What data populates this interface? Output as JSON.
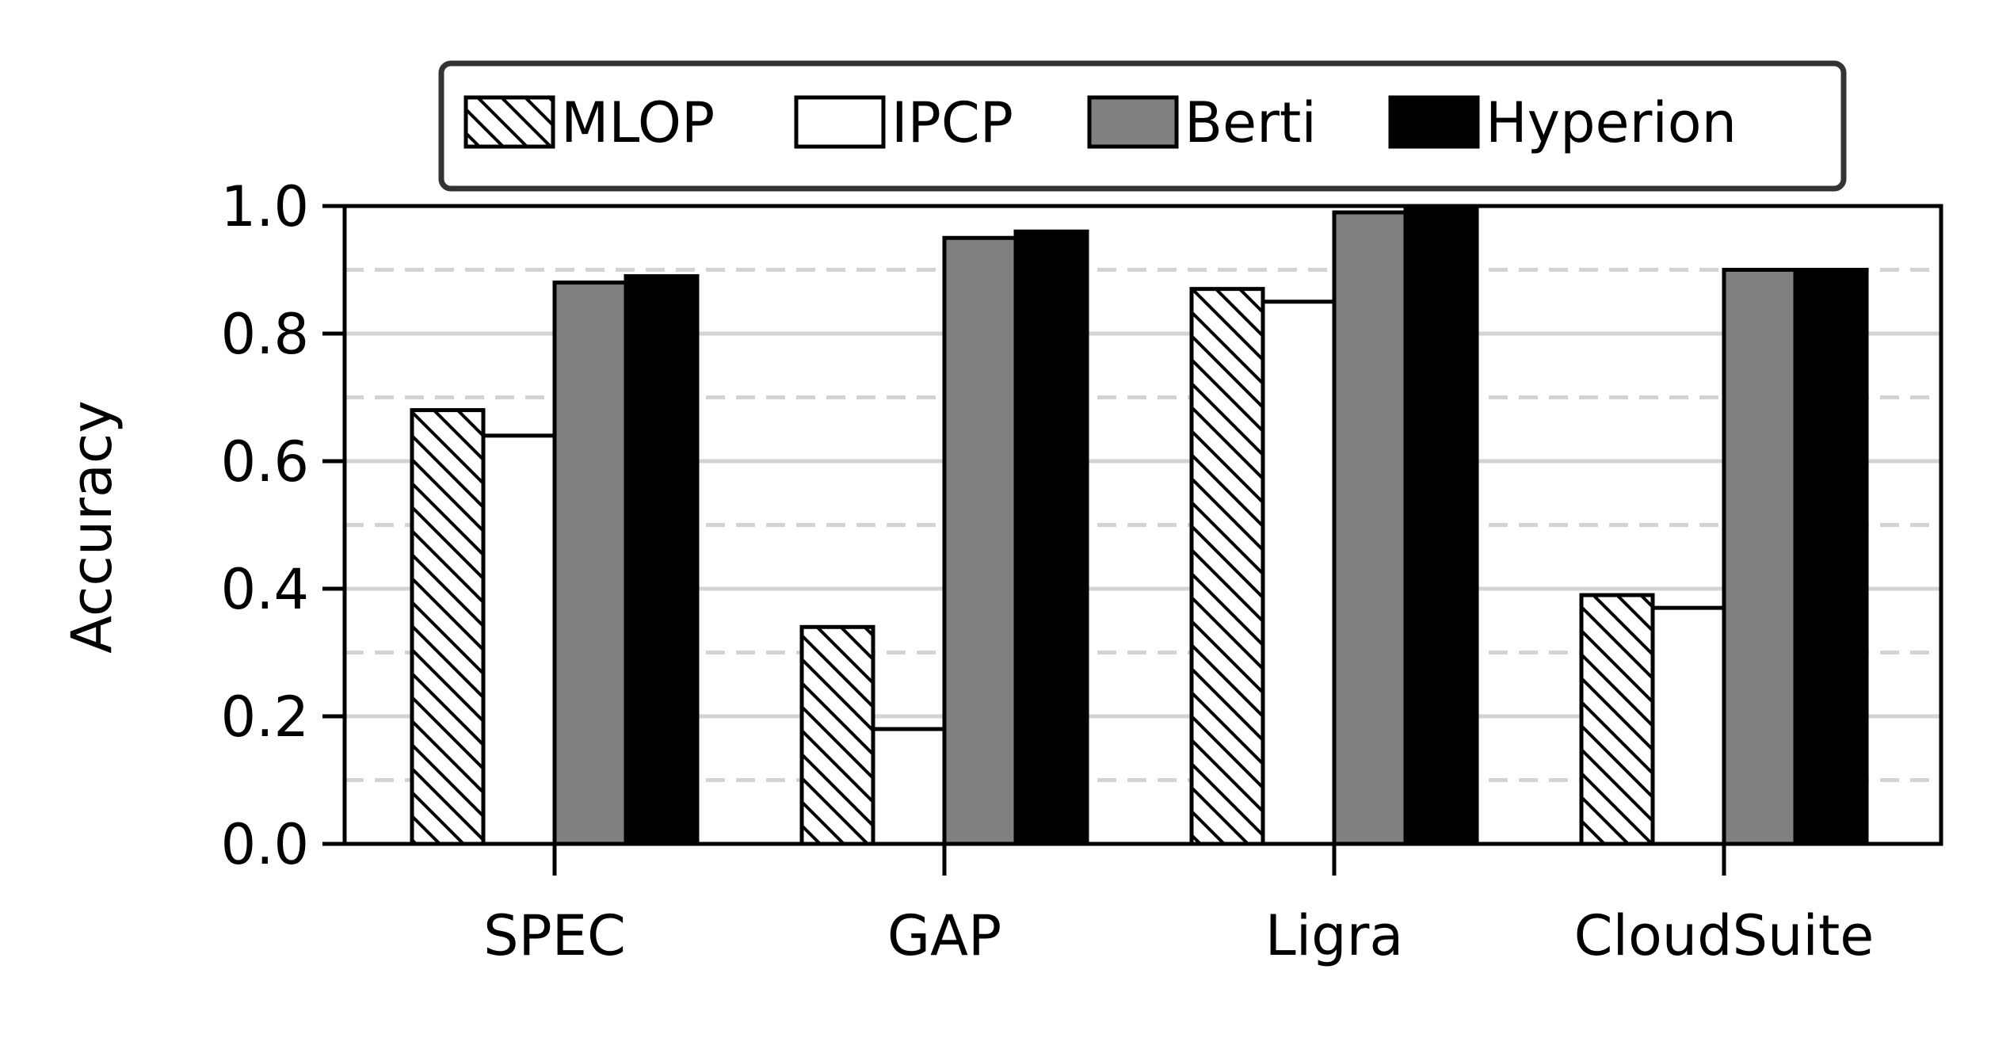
{
  "chart_data": {
    "type": "bar",
    "categories": [
      "SPEC",
      "GAP",
      "Ligra",
      "CloudSuite"
    ],
    "series": [
      {
        "name": "MLOP",
        "values": [
          0.68,
          0.34,
          0.87,
          0.39
        ],
        "color": "#ffffff",
        "pattern": "hatch"
      },
      {
        "name": "IPCP",
        "values": [
          0.64,
          0.18,
          0.85,
          0.37
        ],
        "color": "#ffffff",
        "pattern": "none"
      },
      {
        "name": "Berti",
        "values": [
          0.88,
          0.95,
          0.99,
          0.9
        ],
        "color": "#808080",
        "pattern": "none"
      },
      {
        "name": "Hyperion",
        "values": [
          0.89,
          0.96,
          1.0,
          0.9
        ],
        "color": "#000000",
        "pattern": "none"
      }
    ],
    "title": "",
    "xlabel": "",
    "ylabel": "Accuracy",
    "ylim": [
      0.0,
      1.0
    ],
    "yticks": [
      "0.0",
      "0.2",
      "0.4",
      "0.6",
      "0.8",
      "1.0"
    ],
    "grid": {
      "major": true,
      "minor_dashed": true,
      "color": "#d3d3d3"
    },
    "legend_position": "top"
  }
}
